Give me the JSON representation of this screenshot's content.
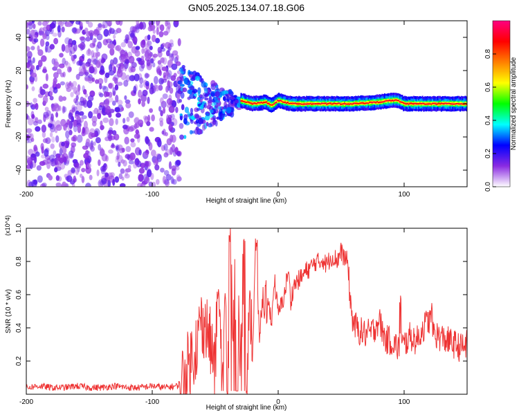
{
  "figure_title": "GN05.2025.134.07.18.G06",
  "chart_data": [
    {
      "type": "heatmap",
      "title": "GN05.2025.134.07.18.G06",
      "xlabel": "Height of straight line (km)",
      "ylabel": "Frequency (Hz)",
      "xlim": [
        -200,
        150
      ],
      "ylim": [
        -50,
        50
      ],
      "x_ticks": [
        -200,
        -100,
        0,
        100
      ],
      "x_tick_labels": [
        "-200",
        "-100",
        "0",
        "100"
      ],
      "y_ticks": [
        -40,
        -20,
        0,
        20,
        40
      ],
      "y_tick_labels": [
        "-40",
        "-20",
        "0",
        "20",
        "40"
      ],
      "grid": false,
      "colorbar": {
        "label": "Normalized spectral amplitude",
        "range": [
          0,
          1
        ],
        "ticks": [
          0.0,
          0.2,
          0.4,
          0.6,
          0.8
        ],
        "tick_labels": [
          "0.0",
          "0.2",
          "0.4",
          "0.6",
          "0.8"
        ],
        "colormap": [
          "#ffffff",
          "#8a2be2",
          "#0000ff",
          "#00ffff",
          "#00ff00",
          "#ffff00",
          "#ff8000",
          "#ff0000",
          "#ff0080"
        ]
      },
      "regions": [
        {
          "name": "noise",
          "x_range": [
            -200,
            -78
          ],
          "freq_range": [
            -50,
            50
          ],
          "amplitude": 0.1
        },
        {
          "name": "transition",
          "x_range": [
            -78,
            -30
          ],
          "freq_range": [
            -20,
            20
          ],
          "amplitude": 0.3
        },
        {
          "name": "signal",
          "x_range": [
            -30,
            150
          ],
          "freq_center": 0,
          "amplitude": 0.9
        }
      ],
      "signal_line": {
        "x": [
          -30,
          -20,
          -10,
          -5,
          0,
          5,
          10,
          20,
          40,
          60,
          80,
          90,
          95,
          100,
          110,
          130,
          150
        ],
        "freq": [
          2,
          0,
          1,
          -1,
          2,
          1,
          0,
          0,
          0,
          0,
          1,
          2,
          2,
          0,
          0,
          0,
          0
        ]
      }
    },
    {
      "type": "line",
      "ylabel": "SNR (10 * v/v)",
      "y_multiplier": "(x10^4)",
      "xlabel": "Height of straight line (km)",
      "xlim": [
        -200,
        150
      ],
      "ylim": [
        0,
        1.0
      ],
      "x_ticks": [
        -200,
        -100,
        0,
        100
      ],
      "x_tick_labels": [
        "-200",
        "-100",
        "0",
        "100"
      ],
      "y_ticks": [
        0.2,
        0.4,
        0.6,
        0.8,
        1.0
      ],
      "y_tick_labels": [
        "0.2",
        "0.4",
        "0.6",
        "0.8",
        "1.0"
      ],
      "grid": false,
      "color": "#ee3333",
      "series": [
        {
          "x": [
            -200,
            -190,
            -180,
            -170,
            -160,
            -150,
            -140,
            -130,
            -120,
            -110,
            -100,
            -90,
            -80,
            -75,
            -70,
            -65,
            -60,
            -55,
            -50,
            -48,
            -45,
            -42,
            -40,
            -38,
            -35,
            -33,
            -30,
            -28,
            -25,
            -22,
            -20,
            -18,
            -15,
            -12,
            -10,
            -8,
            -5,
            -3,
            0,
            3,
            5,
            8,
            10,
            12,
            15,
            18,
            20,
            22,
            25,
            28,
            30,
            33,
            35,
            38,
            40,
            42,
            45,
            48,
            50,
            52,
            55,
            58,
            60,
            65,
            70,
            75,
            80,
            85,
            90,
            95,
            100,
            105,
            110,
            115,
            120,
            125,
            130,
            135,
            140,
            145,
            150
          ],
          "y": [
            0.04,
            0.05,
            0.04,
            0.04,
            0.05,
            0.04,
            0.04,
            0.05,
            0.04,
            0.04,
            0.05,
            0.04,
            0.05,
            0.1,
            0.2,
            0.3,
            0.45,
            0.35,
            0.15,
            0.6,
            0.2,
            0.55,
            0.05,
            0.95,
            0.3,
            0.8,
            0.1,
            0.7,
            0.15,
            0.5,
            0.3,
            0.9,
            0.35,
            0.6,
            0.4,
            0.55,
            0.45,
            0.7,
            0.48,
            0.55,
            0.6,
            0.75,
            0.55,
            0.65,
            0.68,
            0.7,
            0.72,
            0.74,
            0.76,
            0.78,
            0.8,
            0.79,
            0.82,
            0.78,
            0.8,
            0.83,
            0.82,
            0.8,
            0.86,
            0.83,
            0.8,
            0.5,
            0.42,
            0.38,
            0.36,
            0.38,
            0.45,
            0.33,
            0.32,
            0.28,
            0.3,
            0.35,
            0.32,
            0.4,
            0.45,
            0.36,
            0.34,
            0.32,
            0.3,
            0.28,
            0.3
          ]
        }
      ]
    }
  ]
}
